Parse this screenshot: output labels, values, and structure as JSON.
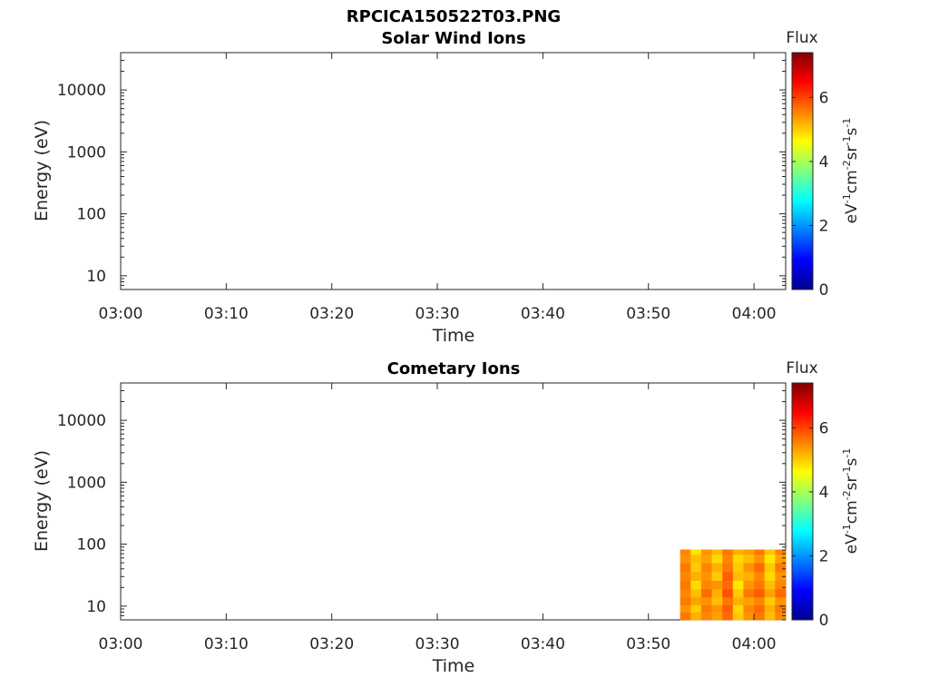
{
  "figure": {
    "title": "RPCICA150522T03.PNG"
  },
  "colormap": "jet",
  "chart_data": [
    {
      "type": "heatmap",
      "title": "Solar Wind Ions",
      "xlabel": "Time",
      "ylabel": "Energy (eV)",
      "yscale": "log",
      "ylim": [
        6,
        40000
      ],
      "xlim": [
        "03:00",
        "04:03"
      ],
      "xticks": [
        "03:00",
        "03:10",
        "03:20",
        "03:30",
        "03:40",
        "03:50",
        "04:00"
      ],
      "yticks": [
        "10",
        "100",
        "1000",
        "10000"
      ],
      "colorbar": {
        "title": "Flux",
        "label": "eV-1cm-2sr-1s-1",
        "ticks": [
          "0",
          "2",
          "4",
          "6"
        ],
        "range": [
          0,
          7.4
        ]
      },
      "cells": []
    },
    {
      "type": "heatmap",
      "title": "Cometary Ions",
      "xlabel": "Time",
      "ylabel": "Energy (eV)",
      "yscale": "log",
      "ylim": [
        6,
        40000
      ],
      "xlim": [
        "03:00",
        "04:03"
      ],
      "xticks": [
        "03:00",
        "03:10",
        "03:20",
        "03:30",
        "03:40",
        "03:50",
        "04:00"
      ],
      "yticks": [
        "10",
        "100",
        "1000",
        "10000"
      ],
      "colorbar": {
        "title": "Flux",
        "label": "eV-1cm-2sr-1s-1",
        "ticks": [
          "0",
          "2",
          "4",
          "6"
        ],
        "range": [
          0,
          7.4
        ]
      },
      "time_bins": [
        "03:53",
        "03:54",
        "03:55",
        "03:56",
        "03:57",
        "03:58",
        "03:59",
        "04:00",
        "04:01",
        "04:02",
        "04:03"
      ],
      "energy_bins": [
        6,
        8,
        10.5,
        14,
        19,
        26,
        36,
        50,
        68,
        82
      ],
      "flux": [
        [
          5.6,
          5.4,
          5.6,
          5.5,
          5.6,
          5.5,
          5.6,
          5.4,
          5.5,
          5.4
        ],
        [
          5.2,
          5.0,
          5.3,
          5.1,
          4.9,
          5.2,
          5.0,
          5.1,
          4.8,
          5.0
        ],
        [
          5.5,
          5.6,
          5.4,
          5.7,
          5.5,
          5.4,
          5.5,
          5.3,
          5.4,
          5.2
        ],
        [
          5.3,
          5.4,
          5.1,
          5.2,
          5.4,
          5.0,
          5.2,
          4.9,
          5.1,
          4.8
        ],
        [
          5.7,
          5.8,
          5.6,
          5.9,
          5.7,
          5.8,
          5.6,
          5.5,
          5.6,
          5.4
        ],
        [
          5.0,
          4.9,
          5.2,
          5.0,
          4.8,
          5.1,
          5.0,
          4.9,
          5.2,
          5.0
        ],
        [
          5.4,
          5.5,
          5.3,
          5.6,
          5.4,
          5.2,
          5.4,
          5.1,
          5.3,
          5.0
        ],
        [
          5.6,
          5.7,
          5.5,
          5.8,
          5.6,
          5.5,
          5.7,
          5.4,
          5.6,
          5.3
        ],
        [
          5.1,
          5.2,
          5.0,
          5.3,
          5.1,
          4.9,
          5.0,
          4.8,
          5.0,
          4.7
        ],
        [
          5.5,
          5.6,
          5.4,
          5.7,
          5.5,
          5.4,
          5.6,
          5.3,
          5.5,
          5.2
        ]
      ]
    }
  ]
}
